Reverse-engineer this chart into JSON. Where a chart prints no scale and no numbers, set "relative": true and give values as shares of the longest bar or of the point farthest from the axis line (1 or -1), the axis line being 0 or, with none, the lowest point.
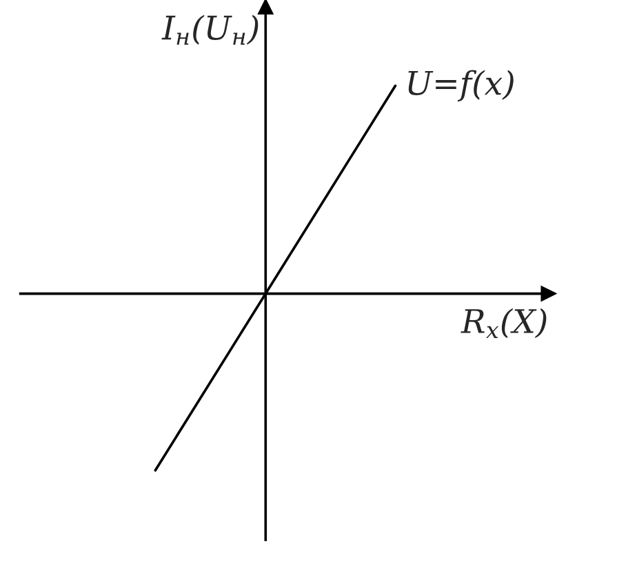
{
  "chart_data": {
    "type": "line",
    "relative": true,
    "xlabel": "R$_{x}$(X)",
    "ylabel": "I$_{н}$(U$_{н}$)",
    "categories": [
      null,
      null,
      null
    ],
    "series": [
      {
        "color": "#000000",
        "values": [
          -0.85,
          0.075,
          1
        ]
      }
    ],
    "annotations": [
      "U=f(x)"
    ],
    "marker": "none",
    "line_style": "solid",
    "legend": false
  }
}
